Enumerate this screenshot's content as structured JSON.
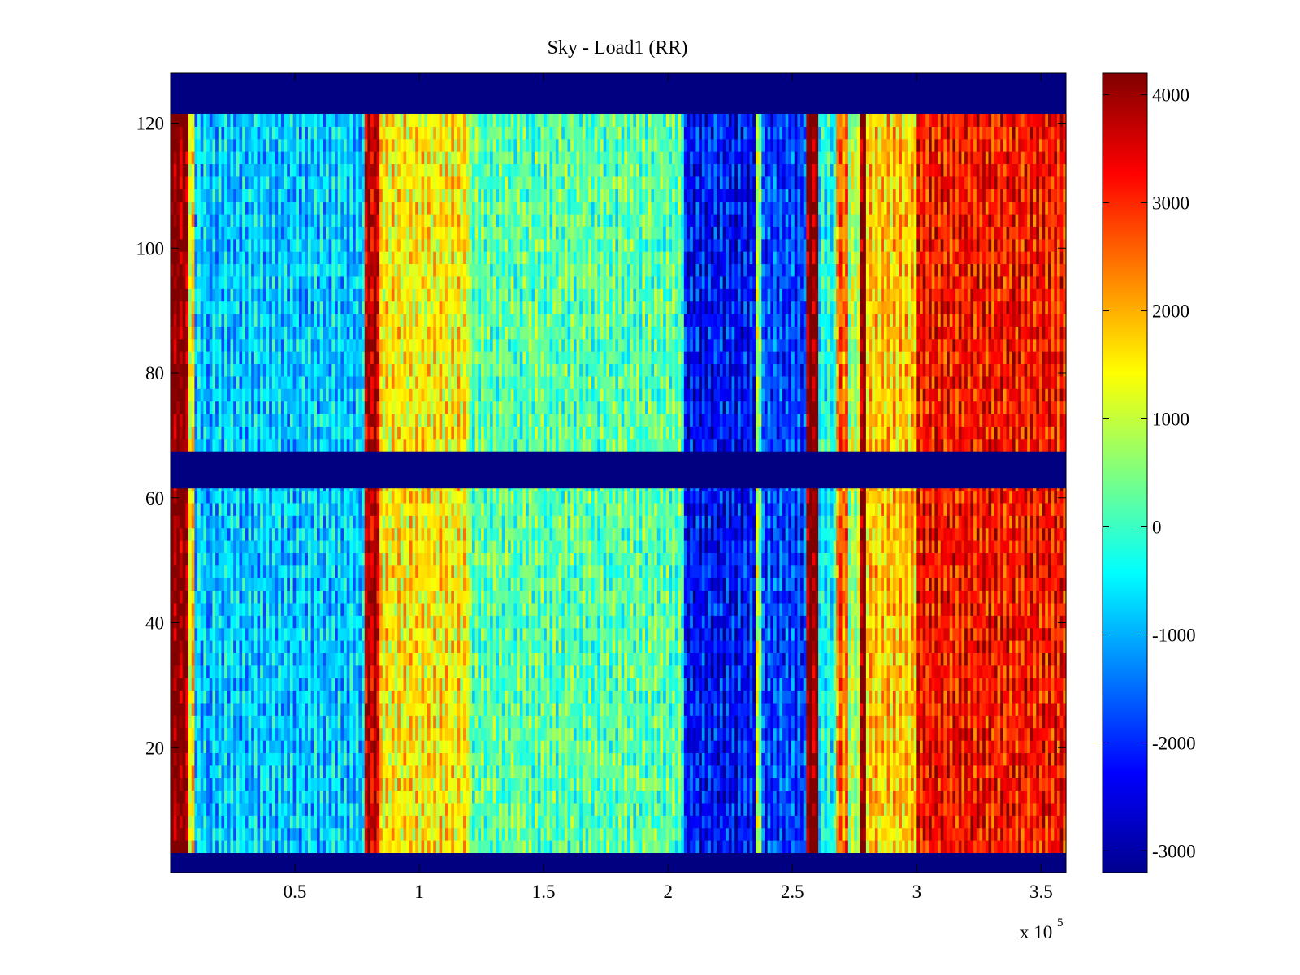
{
  "chart_data": {
    "type": "heatmap",
    "title": "Sky - Load1 (RR)",
    "xlabel": "",
    "ylabel": "",
    "x_multiplier_label": "x 10",
    "x_multiplier_exponent": "5",
    "xlim": [
      0,
      3.6
    ],
    "ylim": [
      0,
      128
    ],
    "x_ticks": [
      0.5,
      1,
      1.5,
      2,
      2.5,
      3,
      3.5
    ],
    "x_tick_labels": [
      "0.5",
      "1",
      "1.5",
      "2",
      "2.5",
      "3",
      "3.5"
    ],
    "y_ticks": [
      20,
      40,
      60,
      80,
      100,
      120
    ],
    "y_tick_labels": [
      "20",
      "40",
      "60",
      "80",
      "100",
      "120"
    ],
    "colormap": "jet",
    "clim": [
      -3200,
      4200
    ],
    "colorbar_ticks": [
      4000,
      3000,
      2000,
      1000,
      0,
      -1000,
      -2000,
      -3000
    ],
    "colorbar_tick_labels": [
      "4000",
      "3000",
      "2000",
      "1000",
      "0",
      "-1000",
      "-2000",
      "-3000"
    ],
    "empty_rows_ranges": [
      [
        0,
        3.2
      ],
      [
        61.5,
        67.5
      ],
      [
        121.5,
        128
      ]
    ],
    "column_bands": [
      {
        "x_start": 0.0,
        "x_end": 0.07,
        "value": 4200
      },
      {
        "x_start": 0.07,
        "x_end": 0.1,
        "value": 1500
      },
      {
        "x_start": 0.1,
        "x_end": 0.78,
        "value": -800
      },
      {
        "x_start": 0.78,
        "x_end": 0.84,
        "value": 3800
      },
      {
        "x_start": 0.84,
        "x_end": 1.2,
        "value": 1500
      },
      {
        "x_start": 1.2,
        "x_end": 2.06,
        "value": 200
      },
      {
        "x_start": 2.06,
        "x_end": 2.35,
        "value": -2200
      },
      {
        "x_start": 2.35,
        "x_end": 2.38,
        "value": 800
      },
      {
        "x_start": 2.38,
        "x_end": 2.56,
        "value": -1800
      },
      {
        "x_start": 2.56,
        "x_end": 2.6,
        "value": 4200
      },
      {
        "x_start": 2.6,
        "x_end": 2.68,
        "value": -300
      },
      {
        "x_start": 2.68,
        "x_end": 2.72,
        "value": 2500
      },
      {
        "x_start": 2.72,
        "x_end": 2.77,
        "value": 800
      },
      {
        "x_start": 2.77,
        "x_end": 2.8,
        "value": 4200
      },
      {
        "x_start": 2.8,
        "x_end": 3.0,
        "value": 1800
      },
      {
        "x_start": 3.0,
        "x_end": 3.6,
        "value": 3200
      }
    ]
  }
}
